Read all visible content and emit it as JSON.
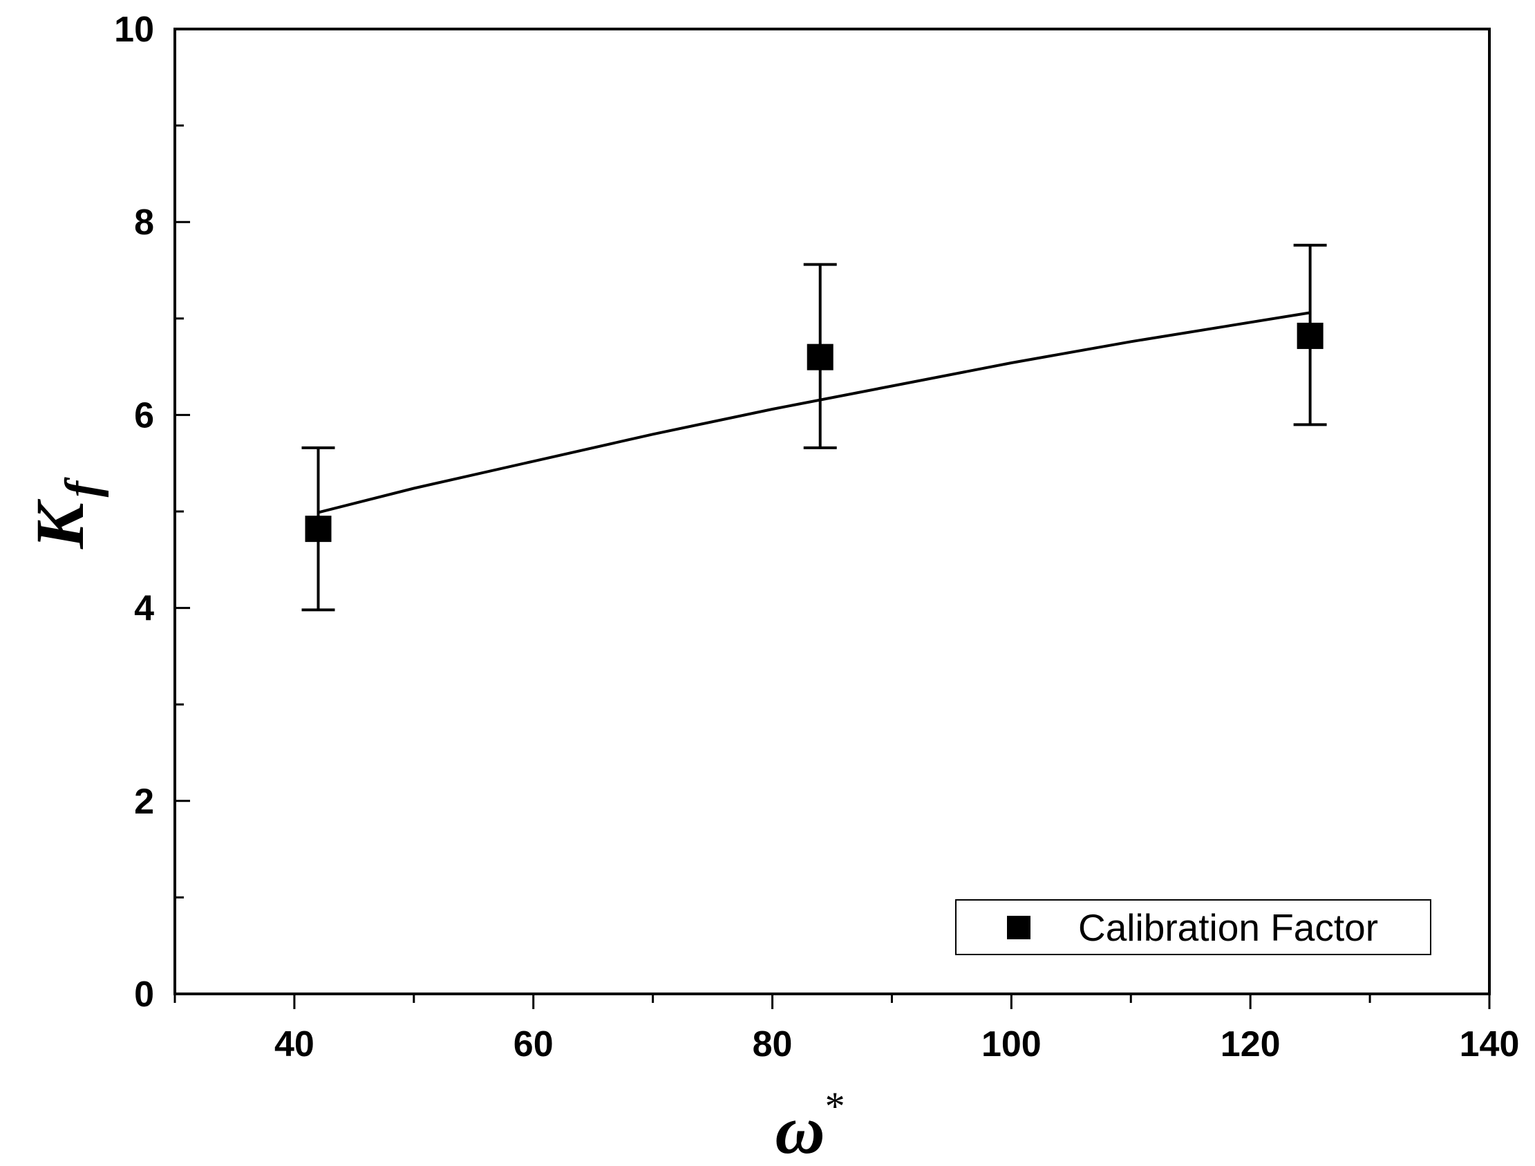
{
  "chart_data": {
    "type": "scatter",
    "title": "",
    "xlabel": "ω",
    "xlabel_superscript": "*",
    "ylabel": "K",
    "ylabel_subscript": "f",
    "xlim": [
      30,
      140
    ],
    "ylim": [
      0,
      10
    ],
    "x_major_ticks": [
      40,
      60,
      80,
      100,
      120,
      140
    ],
    "x_tick_labels": [
      "40",
      "60",
      "80",
      "100",
      "120",
      "140"
    ],
    "x_minor_ticks": [
      30,
      50,
      70,
      90,
      110,
      130
    ],
    "y_major_ticks": [
      0,
      2,
      4,
      6,
      8,
      10
    ],
    "y_tick_labels": [
      "0",
      "2",
      "4",
      "6",
      "8",
      "10"
    ],
    "y_minor_ticks": [
      1,
      3,
      5,
      7,
      9
    ],
    "grid": false,
    "legend": {
      "position": "bottom-right",
      "entries": [
        "Calibration Factor"
      ]
    },
    "series": [
      {
        "name": "Calibration Factor",
        "marker": "square",
        "color": "#000000",
        "x": [
          42,
          84,
          125
        ],
        "y": [
          4.82,
          6.6,
          6.82
        ],
        "err_low": [
          3.98,
          5.66,
          5.9
        ],
        "err_high": [
          5.66,
          7.56,
          7.76
        ]
      }
    ],
    "fit_curve": {
      "name": "fit",
      "x": [
        42,
        50,
        60,
        70,
        80,
        90,
        100,
        110,
        125
      ],
      "y": [
        4.99,
        5.24,
        5.52,
        5.8,
        6.06,
        6.3,
        6.54,
        6.76,
        7.06
      ]
    }
  }
}
